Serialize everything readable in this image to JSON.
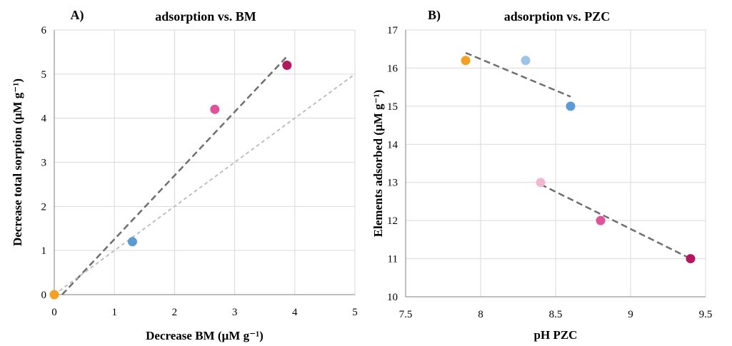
{
  "chart_data": [
    {
      "type": "scatter",
      "panel_label": "A)",
      "title": "adsorption vs. BM",
      "xlabel": "Decrease BM (µM g⁻¹)",
      "ylabel": "Decrease total sorption (µM g⁻¹)",
      "xlim": [
        0,
        5
      ],
      "ylim": [
        0,
        6
      ],
      "xticks": [
        "0",
        "1",
        "2",
        "3",
        "4",
        "5"
      ],
      "yticks": [
        "0",
        "1",
        "2",
        "3",
        "4",
        "5",
        "6"
      ],
      "grid": true,
      "points": [
        {
          "x": 0.0,
          "y": 0.0,
          "color": "#f5a023"
        },
        {
          "x": 1.3,
          "y": 1.2,
          "color": "#5b9bd5"
        },
        {
          "x": 2.67,
          "y": 4.2,
          "color": "#e0529a"
        },
        {
          "x": 3.87,
          "y": 5.2,
          "color": "#b5175f"
        }
      ],
      "lines": [
        {
          "x": [
            0.13,
            3.87
          ],
          "y": [
            0.0,
            5.4
          ],
          "color": "#6f6f6f",
          "style": "dashed"
        },
        {
          "x": [
            0.0,
            5.0
          ],
          "y": [
            0.0,
            5.0
          ],
          "color": "#bfbfbf",
          "style": "dashed"
        }
      ]
    },
    {
      "type": "scatter",
      "panel_label": "B)",
      "title": "adsorption vs. PZC",
      "xlabel": "pH PZC",
      "ylabel": "Elements adsorbed  (µM g⁻¹)",
      "xlim": [
        7.5,
        9.5
      ],
      "ylim": [
        10,
        17
      ],
      "xticks": [
        "7.5",
        "8",
        "8.5",
        "9",
        "9.5"
      ],
      "yticks": [
        "10",
        "11",
        "12",
        "13",
        "14",
        "15",
        "16",
        "17"
      ],
      "grid": true,
      "points": [
        {
          "x": 7.9,
          "y": 16.2,
          "color": "#f5a023"
        },
        {
          "x": 8.3,
          "y": 16.2,
          "color": "#9dc3e6"
        },
        {
          "x": 8.6,
          "y": 15.0,
          "color": "#5b9bd5"
        },
        {
          "x": 8.4,
          "y": 13.0,
          "color": "#f4b6cf"
        },
        {
          "x": 8.8,
          "y": 12.0,
          "color": "#e0529a"
        },
        {
          "x": 9.4,
          "y": 11.0,
          "color": "#b5175f"
        }
      ],
      "lines": [
        {
          "x": [
            7.9,
            8.6
          ],
          "y": [
            16.4,
            15.25
          ],
          "color": "#6f6f6f",
          "style": "dashed"
        },
        {
          "x": [
            8.4,
            9.4
          ],
          "y": [
            12.95,
            11.0
          ],
          "color": "#6f6f6f",
          "style": "dashed"
        }
      ]
    }
  ]
}
